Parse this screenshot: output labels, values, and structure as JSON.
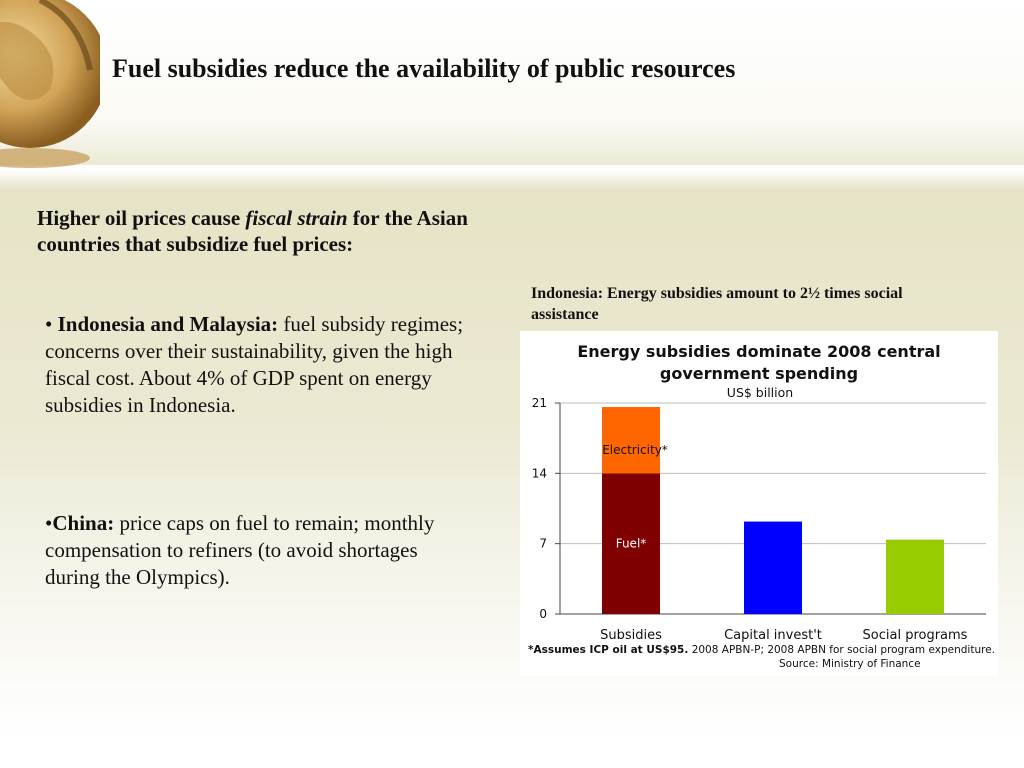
{
  "title": "Fuel subsidies reduce the availability of public resources",
  "subtitle": {
    "pre": "Higher oil prices cause ",
    "em": "fiscal strain",
    "post": " for the Asian countries that subsidize fuel prices:"
  },
  "bullets": [
    {
      "prefix": "• ",
      "bold": "Indonesia and Malaysia:",
      "text": " fuel subsidy regimes; concerns over their sustainability, given the high fiscal cost. About 4% of GDP spent on energy subsidies in Indonesia."
    },
    {
      "prefix": "•",
      "bold": "China:",
      "text": " price caps on fuel to remain; monthly compensation to refiners (to avoid shortages during the Olympics)."
    }
  ],
  "chart_caption": "Indonesia: Energy subsidies amount to  2½ times social assistance",
  "footnote": {
    "bold": "*Assumes ICP oil at US$95.",
    "text": "  2008 APBN-P; 2008 APBN for social program expenditure.",
    "source": "Source: Ministry of Finance"
  },
  "colors": {
    "fuel": "#7f0000",
    "electricity": "#ff6600",
    "capital": "#0000ff",
    "social": "#99cc00"
  },
  "chart_data": {
    "type": "bar",
    "title": "Energy subsidies dominate 2008 central government spending",
    "units": "US$ billion",
    "categories": [
      "Subsidies",
      "Capital invest't",
      "Social programs"
    ],
    "series": [
      {
        "name": "Fuel*",
        "values": [
          14,
          0,
          0
        ]
      },
      {
        "name": "Electricity*",
        "values": [
          6.6,
          0,
          0
        ]
      },
      {
        "name": "Capital invest't",
        "values": [
          0,
          9.2,
          0
        ]
      },
      {
        "name": "Social programs",
        "values": [
          0,
          0,
          7.4
        ]
      }
    ],
    "ylim": [
      0,
      21
    ],
    "yticks": [
      0,
      7,
      14,
      21
    ],
    "grid": true
  }
}
